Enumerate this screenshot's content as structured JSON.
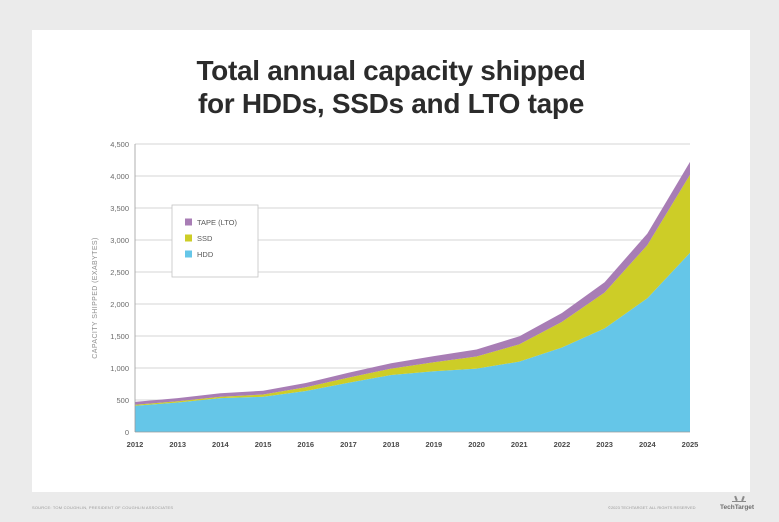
{
  "title_lines": [
    "Total annual capacity shipped",
    "for HDDs, SSDs and LTO tape"
  ],
  "footer": {
    "source": "SOURCE: TOM COUGHLIN, PRESIDENT OF COUGHLIN ASSOCIATES",
    "copyright": "©2023 TECHTARGET. ALL RIGHTS RESERVED",
    "brand": "TechTarget"
  },
  "chart_data": {
    "type": "area",
    "stacked": true,
    "title": "Total annual capacity shipped for HDDs, SSDs and LTO tape",
    "ylabel": "CAPACITY SHIPPED (EXABYTES)",
    "xlabel": "",
    "x": [
      "2012",
      "2013",
      "2014",
      "2015",
      "2016",
      "2017",
      "2018",
      "2019",
      "2020",
      "2021",
      "2022",
      "2023",
      "2024",
      "2025"
    ],
    "ylim": [
      0,
      4500
    ],
    "yticks": [
      0,
      500,
      1000,
      1500,
      2000,
      2500,
      3000,
      3500,
      4000,
      4500
    ],
    "ytick_labels": [
      "0",
      "500",
      "1,000",
      "1,500",
      "2,000",
      "2,500",
      "3,000",
      "3,500",
      "4,000",
      "4,500"
    ],
    "grid": "horizontal",
    "legend_position": "top-left",
    "series": [
      {
        "name": "HDD",
        "color": "#65c6e8",
        "values": [
          410,
          460,
          530,
          550,
          640,
          770,
          890,
          950,
          990,
          1100,
          1320,
          1620,
          2090,
          2800
        ]
      },
      {
        "name": "SSD",
        "color": "#cdcd27",
        "values": [
          15,
          20,
          20,
          35,
          60,
          80,
          100,
          140,
          190,
          270,
          400,
          560,
          830,
          1220
        ]
      },
      {
        "name": "TAPE (LTO)",
        "color": "#a87db5",
        "values": [
          45,
          50,
          55,
          60,
          65,
          75,
          85,
          95,
          110,
          125,
          140,
          160,
          180,
          200
        ]
      }
    ],
    "legend_order": [
      "TAPE (LTO)",
      "SSD",
      "HDD"
    ]
  }
}
